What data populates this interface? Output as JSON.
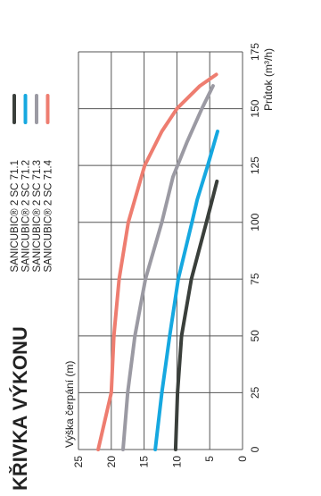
{
  "chart_data": {
    "type": "line",
    "title": "KŘIVKA VÝKONU",
    "xlabel": "Průtok (m³/h)",
    "ylabel": "Výška čerpání (m)",
    "xlim": [
      0,
      175
    ],
    "ylim": [
      0,
      25
    ],
    "xticks": [
      "0",
      "25",
      "50",
      "75",
      "100",
      "125",
      "150",
      "175"
    ],
    "yticks": [
      "0",
      "5",
      "10",
      "15",
      "20",
      "25"
    ],
    "grid": true,
    "legend_position": "top-right",
    "series": [
      {
        "name": "SANICUBIC® 2 SC 71.1",
        "color": "#3a3f3b",
        "x": [
          0,
          25,
          50,
          75,
          100,
          110,
          118
        ],
        "y": [
          10.2,
          9.9,
          9.3,
          7.8,
          5.5,
          4.6,
          3.9
        ]
      },
      {
        "name": "SANICUBIC® 2 SC 71.2",
        "color": "#16a8e0",
        "x": [
          0,
          25,
          50,
          75,
          100,
          110,
          125,
          140
        ],
        "y": [
          13.3,
          12.3,
          11.1,
          9.8,
          7.7,
          6.9,
          5.3,
          3.8
        ]
      },
      {
        "name": "SANICUBIC® 2 SC 71.3",
        "color": "#9b9aa3",
        "x": [
          0,
          25,
          50,
          75,
          100,
          120,
          135,
          150,
          160
        ],
        "y": [
          18.2,
          17.5,
          16.4,
          14.8,
          12.3,
          10.6,
          8.5,
          6.2,
          4.5
        ]
      },
      {
        "name": "SANICUBIC® 2 SC 71.4",
        "color": "#ee7d70",
        "x": [
          0,
          25,
          50,
          75,
          100,
          125,
          140,
          150,
          160,
          165
        ],
        "y": [
          22.0,
          20.0,
          19.6,
          18.8,
          17.4,
          14.9,
          12.3,
          10.0,
          6.5,
          4.0
        ]
      }
    ]
  }
}
